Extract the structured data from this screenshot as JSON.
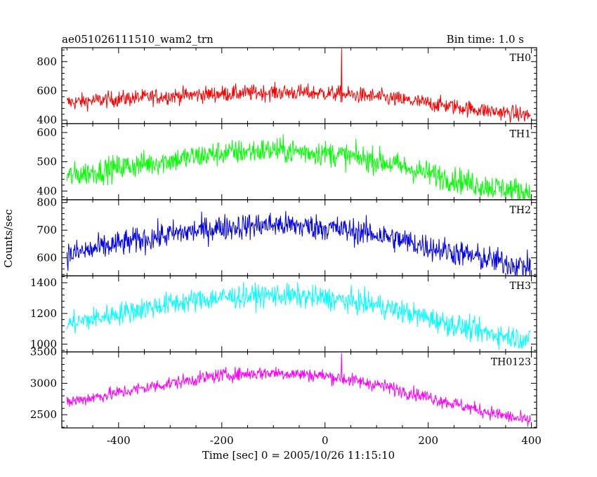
{
  "chart_data": {
    "type": "line",
    "title": "ae051026111510_wam2_trn",
    "subtitle": "Bin time: 1.0 s",
    "xlabel": "Time [sec] 0 = 2005/10/26 11:15:10",
    "ylabel": "Counts/sec",
    "xlim": [
      -510,
      410
    ],
    "xticks": [
      -400,
      -200,
      0,
      200,
      400
    ],
    "grid": false,
    "panels": [
      {
        "name": "TH0",
        "color": "#ff0000",
        "ylim": [
          375,
          895
        ],
        "yticks": [
          400,
          600,
          800
        ],
        "trend": [
          [
            -500,
            520
          ],
          [
            -400,
            545
          ],
          [
            -300,
            565
          ],
          [
            -200,
            580
          ],
          [
            -100,
            590
          ],
          [
            0,
            585
          ],
          [
            100,
            560
          ],
          [
            200,
            515
          ],
          [
            300,
            470
          ],
          [
            400,
            430
          ]
        ],
        "noise": 28,
        "spike": {
          "x": 32,
          "y": 890
        }
      },
      {
        "name": "TH1",
        "color": "#00ff00",
        "ylim": [
          370,
          630
        ],
        "yticks": [
          400,
          500,
          600
        ],
        "trend": [
          [
            -500,
            450
          ],
          [
            -400,
            480
          ],
          [
            -300,
            505
          ],
          [
            -200,
            530
          ],
          [
            -100,
            540
          ],
          [
            0,
            530
          ],
          [
            100,
            505
          ],
          [
            200,
            460
          ],
          [
            300,
            420
          ],
          [
            400,
            395
          ]
        ],
        "noise": 22
      },
      {
        "name": "TH2",
        "color": "#0000ee",
        "ylim": [
          535,
          810
        ],
        "yticks": [
          600,
          700,
          800
        ],
        "trend": [
          [
            -500,
            610
          ],
          [
            -400,
            650
          ],
          [
            -300,
            685
          ],
          [
            -200,
            710
          ],
          [
            -100,
            720
          ],
          [
            0,
            710
          ],
          [
            100,
            685
          ],
          [
            200,
            640
          ],
          [
            300,
            600
          ],
          [
            400,
            565
          ]
        ],
        "noise": 24
      },
      {
        "name": "TH3",
        "color": "#00ffff",
        "ylim": [
          950,
          1445
        ],
        "yticks": [
          1000,
          1200,
          1400
        ],
        "trend": [
          [
            -500,
            1130
          ],
          [
            -400,
            1200
          ],
          [
            -300,
            1265
          ],
          [
            -200,
            1305
          ],
          [
            -100,
            1320
          ],
          [
            0,
            1300
          ],
          [
            100,
            1255
          ],
          [
            200,
            1170
          ],
          [
            300,
            1080
          ],
          [
            400,
            1030
          ]
        ],
        "noise": 38
      },
      {
        "name": "TH0123",
        "color": "#ff00ff",
        "ylim": [
          2290,
          3500
        ],
        "yticks": [
          2500,
          3000,
          3500
        ],
        "trend": [
          [
            -500,
            2700
          ],
          [
            -400,
            2850
          ],
          [
            -300,
            3000
          ],
          [
            -200,
            3130
          ],
          [
            -100,
            3170
          ],
          [
            0,
            3120
          ],
          [
            100,
            2980
          ],
          [
            200,
            2780
          ],
          [
            300,
            2570
          ],
          [
            400,
            2390
          ]
        ],
        "noise": 55,
        "spike": {
          "x": 32,
          "y": 3480
        }
      }
    ]
  }
}
